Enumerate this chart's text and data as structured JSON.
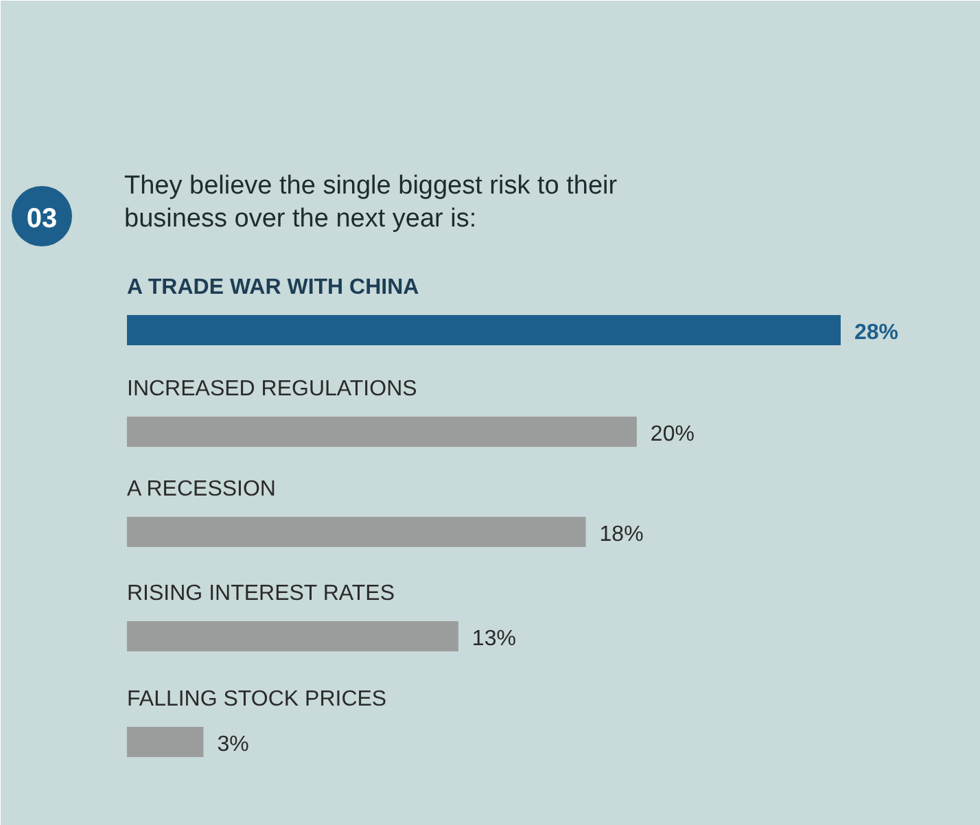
{
  "chart_data": {
    "type": "bar",
    "orientation": "horizontal",
    "title": "They believe the single biggest risk to their business over the next year is:",
    "annotations": [
      "03"
    ],
    "categories": [
      "A TRADE WAR WITH CHINA",
      "INCREASED REGULATIONS",
      "A RECESSION",
      "RISING INTEREST RATES",
      "FALLING STOCK PRICES"
    ],
    "values": [
      28,
      20,
      18,
      13,
      3
    ],
    "colors": [
      "#1d5f8c",
      "#9b9d9c",
      "#9b9d9c",
      "#9b9d9c",
      "#9b9d9c"
    ],
    "value_labels": [
      "28%",
      "20%",
      "18%",
      "13%",
      "3%"
    ]
  }
}
